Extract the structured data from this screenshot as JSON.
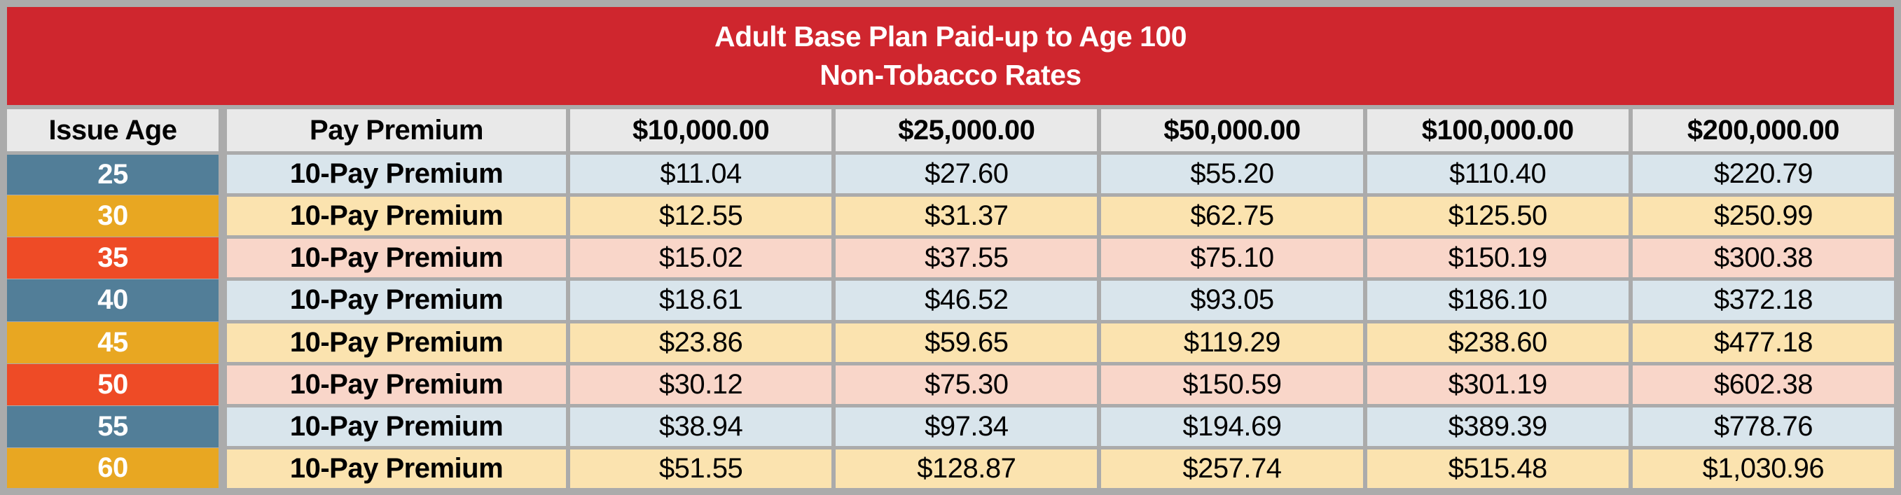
{
  "title": {
    "line1": "Adult Base Plan Paid-up to Age 100",
    "line2": "Non-Tobacco Rates"
  },
  "table": {
    "columns": [
      "Issue Age",
      "Pay Premium",
      "$10,000.00",
      "$25,000.00",
      "$50,000.00",
      "$100,000.00",
      "$200,000.00"
    ],
    "rows": [
      {
        "age": "25",
        "label": "10-Pay Premium",
        "values": [
          "$11.04",
          "$27.60",
          "$55.20",
          "$110.40",
          "$220.79"
        ],
        "theme": "blue"
      },
      {
        "age": "30",
        "label": "10-Pay Premium",
        "values": [
          "$12.55",
          "$31.37",
          "$62.75",
          "$125.50",
          "$250.99"
        ],
        "theme": "orange"
      },
      {
        "age": "35",
        "label": "10-Pay Premium",
        "values": [
          "$15.02",
          "$37.55",
          "$75.10",
          "$150.19",
          "$300.38"
        ],
        "theme": "red"
      },
      {
        "age": "40",
        "label": "10-Pay Premium",
        "values": [
          "$18.61",
          "$46.52",
          "$93.05",
          "$186.10",
          "$372.18"
        ],
        "theme": "blue"
      },
      {
        "age": "45",
        "label": "10-Pay Premium",
        "values": [
          "$23.86",
          "$59.65",
          "$119.29",
          "$238.60",
          "$477.18"
        ],
        "theme": "orange"
      },
      {
        "age": "50",
        "label": "10-Pay Premium",
        "values": [
          "$30.12",
          "$75.30",
          "$150.59",
          "$301.19",
          "$602.38"
        ],
        "theme": "red"
      },
      {
        "age": "55",
        "label": "10-Pay Premium",
        "values": [
          "$38.94",
          "$97.34",
          "$194.69",
          "$389.39",
          "$778.76"
        ],
        "theme": "blue"
      },
      {
        "age": "60",
        "label": "10-Pay Premium",
        "values": [
          "$51.55",
          "$128.87",
          "$257.74",
          "$515.48",
          "$1,030.96"
        ],
        "theme": "orange"
      }
    ]
  },
  "colors": {
    "title_band": "#CF262E",
    "header_row_bg": "#E9E9E9",
    "border_gray": "#ABABAB",
    "themes": {
      "blue": {
        "age": "#527E98",
        "row": "#D9E5EC"
      },
      "orange": {
        "age": "#E8A722",
        "row": "#FBE3AF"
      },
      "red": {
        "age": "#EE4B26",
        "row": "#F9D6C9"
      }
    }
  }
}
